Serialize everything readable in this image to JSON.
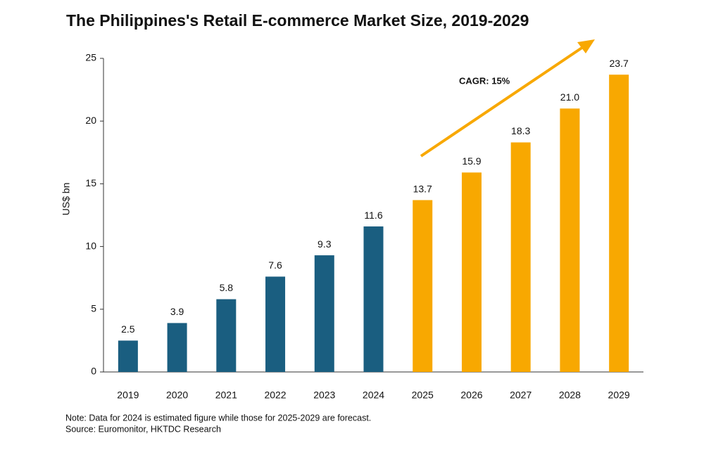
{
  "chart_data": {
    "type": "bar",
    "title": "The Philippines's Retail E-commerce Market Size, 2019-2029",
    "y_label": "US$ bn",
    "annotation": "CAGR: 15%",
    "notes": [
      "Note: Data for 2024 is estimated figure while those for 2025-2029 are forecast.",
      "Source: Euromonitor, HKTDC Research"
    ],
    "categories": [
      "2019",
      "2020",
      "2021",
      "2022",
      "2023",
      "2024",
      "2025",
      "2026",
      "2027",
      "2028",
      "2029"
    ],
    "values": [
      2.5,
      3.9,
      5.8,
      7.6,
      9.3,
      11.6,
      13.7,
      15.9,
      18.3,
      21.0,
      23.7
    ],
    "value_labels": [
      "2.5",
      "3.9",
      "5.8",
      "7.6",
      "9.3",
      "11.6",
      "13.7",
      "15.9",
      "18.3",
      "21.0",
      "23.7"
    ],
    "colors": [
      "#1a5e80",
      "#1a5e80",
      "#1a5e80",
      "#1a5e80",
      "#1a5e80",
      "#1a5e80",
      "#f8a801",
      "#f8a801",
      "#f8a801",
      "#f8a801",
      "#f8a801"
    ],
    "ylim": [
      0,
      25
    ],
    "yticks": [
      0,
      5,
      10,
      15,
      20,
      25
    ],
    "grid": false
  }
}
